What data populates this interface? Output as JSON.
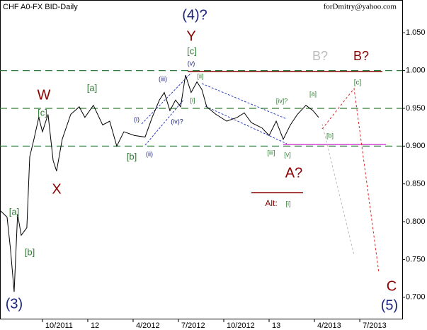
{
  "chart_data": {
    "type": "line",
    "title": "CHF A0-FX BID-Daily",
    "subtitle": "forDmitry@yahoo.com",
    "x": [
      2011.516,
      2011.555,
      2011.574,
      2011.594,
      2011.613,
      2011.633,
      2011.664,
      2011.68,
      2011.703,
      2011.73,
      2011.75,
      2011.781,
      2011.809,
      2011.828,
      2011.859,
      2011.906,
      2011.953,
      2011.984,
      2012.031,
      2012.082,
      2012.121,
      2012.16,
      2012.199,
      2012.258,
      2012.316,
      2012.355,
      2012.395,
      2012.422,
      2012.453,
      2012.484,
      2012.512,
      2012.539,
      2012.57,
      2012.602,
      2012.629,
      2012.656,
      2012.707,
      2012.766,
      2012.824,
      2012.863,
      2012.902,
      2012.961,
      2013.0,
      2013.039,
      2013.078,
      2013.117,
      2013.156,
      2013.203,
      2013.242,
      2013.273
    ],
    "series": [
      {
        "color": "#000000",
        "values": [
          0.815,
          0.806,
          0.763,
          0.707,
          0.81,
          0.782,
          0.792,
          0.886,
          0.909,
          0.938,
          0.919,
          0.942,
          0.881,
          0.867,
          0.909,
          0.942,
          0.952,
          0.938,
          0.954,
          0.928,
          0.933,
          0.9,
          0.919,
          0.914,
          0.912,
          0.938,
          0.961,
          0.971,
          0.947,
          0.961,
          0.952,
          0.994,
          0.971,
          0.985,
          0.975,
          0.952,
          0.942,
          0.933,
          0.938,
          0.944,
          0.931,
          0.924,
          0.914,
          0.933,
          0.909,
          0.928,
          0.942,
          0.954,
          0.947,
          0.938
        ]
      }
    ],
    "xlim": [
      2011.516,
      2013.734
    ],
    "xticks": [
      {
        "value": 2011.75,
        "label": "10/2011"
      },
      {
        "value": 2012.0,
        "label": "12"
      },
      {
        "value": 2012.25,
        "label": "4/2012"
      },
      {
        "value": 2012.5,
        "label": "7/2012"
      },
      {
        "value": 2012.75,
        "label": "10/2012"
      },
      {
        "value": 2013.0,
        "label": "13"
      },
      {
        "value": 2013.25,
        "label": "4/2013"
      },
      {
        "value": 2013.5,
        "label": "7/2013"
      }
    ],
    "ylim": [
      0.6716,
      1.0934
    ],
    "yticks": [
      {
        "value": 0.7,
        "label": "0.700"
      },
      {
        "value": 0.75,
        "label": "0.750"
      },
      {
        "value": 0.8,
        "label": "0.800"
      },
      {
        "value": 0.85,
        "label": "0.850"
      },
      {
        "value": 0.9,
        "label": "0.900"
      },
      {
        "value": 0.95,
        "label": "0.950"
      },
      {
        "value": 1.0,
        "label": "1.000"
      },
      {
        "value": 1.05,
        "label": "1.050"
      }
    ],
    "levels": [
      {
        "value": 1.0,
        "color": "#2e7d32"
      },
      {
        "value": 0.95,
        "color": "#2e7d32"
      },
      {
        "value": 0.9,
        "color": "#2e7d32"
      }
    ],
    "annotations": [
      "(4)?",
      "Y",
      "[c]",
      "B?",
      "B?",
      "[c]",
      "(v)",
      "[a]",
      "W",
      "[c]",
      "(iii)",
      "[ii]",
      "[i]",
      "[iv]?",
      "[a]",
      "(i)",
      "(iv)?",
      "[b]",
      "[b]",
      "(ii)",
      "[iii]",
      "[v]",
      "A?",
      "X",
      "[a]",
      "Alt:",
      "[i]",
      "[b]",
      "C",
      "(3)",
      "(5)"
    ]
  }
}
